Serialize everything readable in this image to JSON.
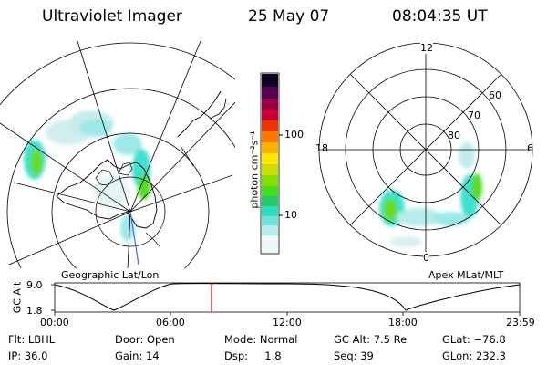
{
  "header": {
    "instrument": "Ultraviolet Imager",
    "date": "25 May 07",
    "time": "08:04:35 UT"
  },
  "left_panel": {
    "label": "Geographic Lat/Lon"
  },
  "right_panel": {
    "label": "Apex MLat/MLT",
    "mlt_labels": [
      "12",
      "18",
      "6",
      "0"
    ],
    "mlat_labels": [
      "60",
      "70",
      "80"
    ]
  },
  "colorbar": {
    "unit_label": "photon cm⁻²s⁻¹",
    "ticks": [
      "100",
      "10"
    ],
    "colors": [
      "#ffffff",
      "#d8f4f4",
      "#9ee8e8",
      "#40e0d0",
      "#22cc66",
      "#55dd22",
      "#aadd00",
      "#ffee00",
      "#ffaa00",
      "#ff6600",
      "#ee2200",
      "#cc0033",
      "#880055",
      "#330055",
      "#110022"
    ]
  },
  "altitude_strip": {
    "axis_label": "GC Alt",
    "y_ticks": [
      "9.0",
      "1.8"
    ],
    "x_ticks": [
      "00:00",
      "06:00",
      "12:00",
      "18:00",
      "23:59"
    ],
    "current_marker_color": "#dd0000"
  },
  "info": {
    "flt": "Flt: LBHL",
    "ip": "IP: 36.0",
    "door": "Door: Open",
    "gain": "Gain: 14",
    "mode": "Mode: Normal",
    "dsp": "Dsp:     1.8",
    "gcalt": "GC Alt: 7.5 Re",
    "seq": "Seq: 39",
    "glat": "GLat: −76.8",
    "glon": "GLon: 232.3"
  }
}
